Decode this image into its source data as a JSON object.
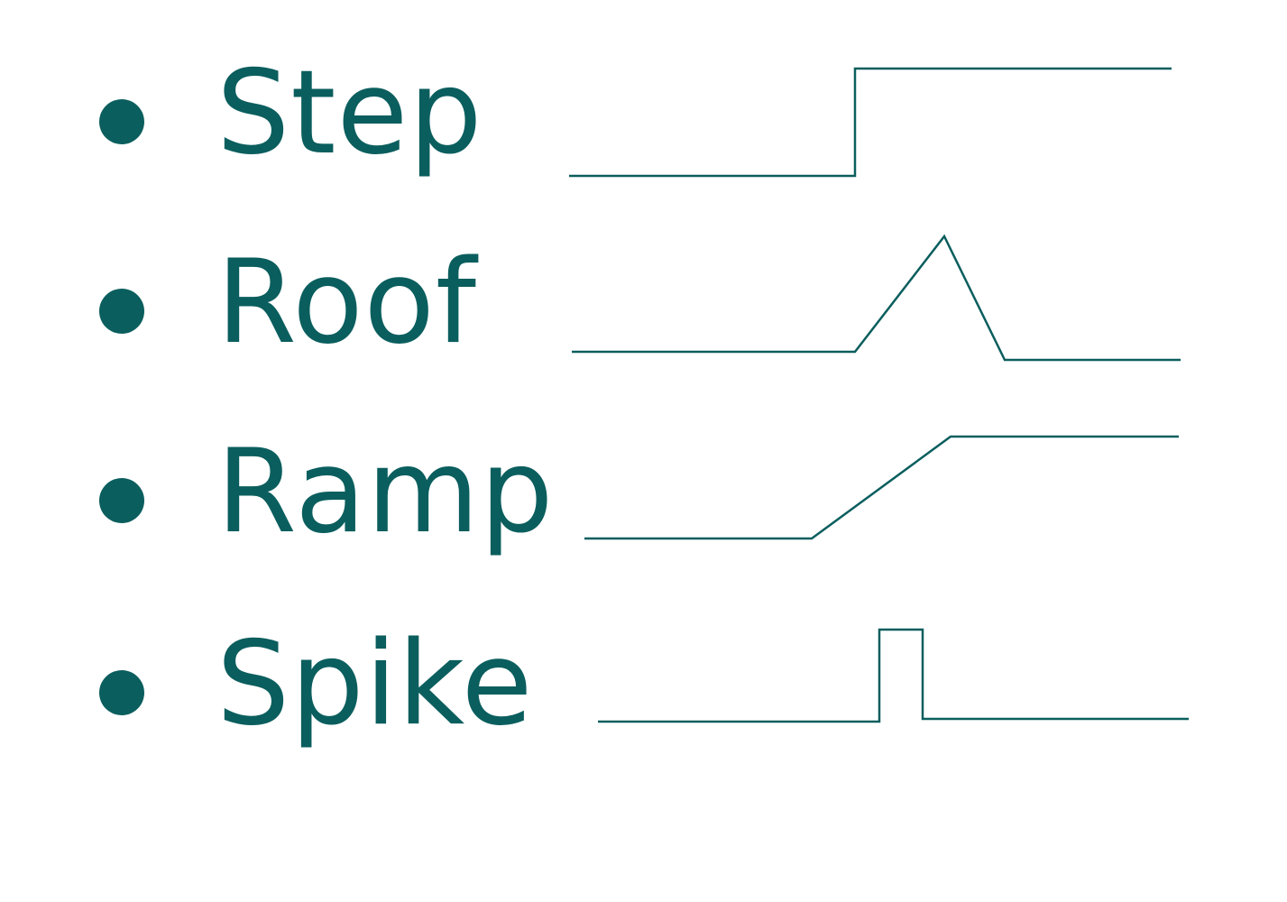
{
  "accent_color": "#0b5e5e",
  "items": [
    {
      "label": "Step",
      "icon": "step-edge-icon"
    },
    {
      "label": "Roof",
      "icon": "roof-edge-icon"
    },
    {
      "label": "Ramp",
      "icon": "ramp-edge-icon"
    },
    {
      "label": "Spike",
      "icon": "spike-edge-icon"
    }
  ]
}
